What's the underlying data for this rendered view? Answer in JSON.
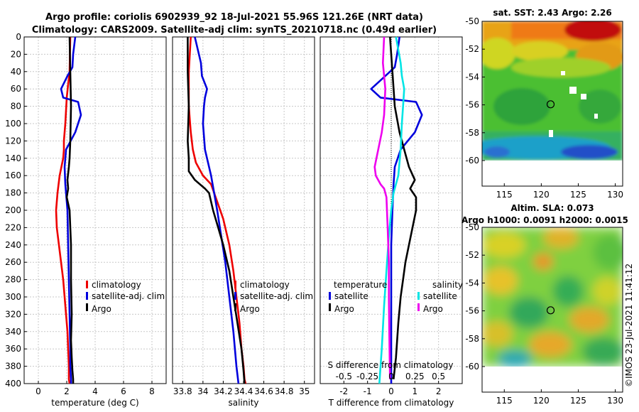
{
  "header": {
    "title_line1": "Argo profile: coriolis 6902939_92 18-Jul-2021 55.96S 121.26E (NRT data)",
    "title_line2": "Climatology: CARS2009. Satellite-adj clim: synTS_20210718.nc (0.49d earlier)"
  },
  "copyright": "©IMOS 23-Jul-2021 11:41:12",
  "colors": {
    "climatology": "#ee0000",
    "satellite": "#0000dd",
    "argo": "#000000",
    "salinity_satellite": "#00e5e5",
    "salinity_argo": "#ee00ee"
  },
  "chart_data": [
    {
      "id": "temperature",
      "type": "line",
      "xlabel": "temperature (deg C)",
      "xlim": [
        -1,
        9
      ],
      "xticks": [
        0,
        2,
        4,
        6,
        8
      ],
      "ylim": [
        400,
        0
      ],
      "yticks": [
        0,
        20,
        40,
        60,
        80,
        100,
        120,
        140,
        160,
        180,
        200,
        220,
        240,
        260,
        280,
        300,
        320,
        340,
        360,
        380,
        400
      ],
      "grid": true,
      "legend": [
        "climatology",
        "satellite-adj. clim",
        "Argo"
      ],
      "legend_placement": "lower-right",
      "series": [
        {
          "name": "climatology",
          "color": "#ee0000",
          "x": [
            2.25,
            2.2,
            2.0,
            1.9,
            1.8,
            1.8,
            1.75,
            1.5,
            1.35,
            1.25,
            1.3,
            1.45,
            1.6,
            1.75,
            1.85,
            1.95,
            2.05,
            2.1,
            2.15,
            2.15,
            2.2
          ],
          "y": [
            0,
            40,
            70,
            100,
            120,
            130,
            140,
            160,
            180,
            200,
            220,
            240,
            260,
            280,
            300,
            320,
            340,
            360,
            380,
            395,
            400
          ]
        },
        {
          "name": "satellite-adj. clim",
          "color": "#0000dd",
          "x": [
            2.6,
            2.45,
            2.4,
            2.05,
            1.6,
            1.75,
            2.8,
            3.0,
            2.6,
            1.95,
            1.85,
            1.9,
            2.05,
            2.1,
            2.15,
            2.2,
            2.25,
            2.25,
            2.3,
            2.3
          ],
          "y": [
            0,
            20,
            35,
            45,
            60,
            70,
            75,
            90,
            110,
            130,
            150,
            170,
            200,
            240,
            280,
            320,
            360,
            380,
            395,
            400
          ]
        },
        {
          "name": "Argo",
          "color": "#000000",
          "x": [
            2.2,
            2.25,
            2.3,
            2.25,
            2.2,
            2.15,
            2.05,
            2.1,
            2.0,
            2.2,
            2.3,
            2.3,
            2.35,
            2.3,
            2.35,
            2.4,
            2.45,
            2.45
          ],
          "y": [
            0,
            40,
            80,
            120,
            140,
            150,
            165,
            175,
            185,
            200,
            240,
            280,
            320,
            350,
            370,
            385,
            395,
            400
          ]
        }
      ]
    },
    {
      "id": "salinity",
      "type": "line",
      "xlabel": "salinity",
      "xlim": [
        33.7,
        35.1
      ],
      "xticks": [
        33.8,
        34,
        34.2,
        34.4,
        34.6,
        34.8,
        35
      ],
      "xticklabels": [
        "33.8",
        "34",
        "34.2",
        "34.4",
        "34.6",
        "34.8",
        "35"
      ],
      "ylim": [
        400,
        0
      ],
      "grid": true,
      "legend": [
        "climatology",
        "satellite-adj. clim",
        "Argo"
      ],
      "legend_placement": "lower-right",
      "series": [
        {
          "name": "climatology",
          "color": "#ee0000",
          "x": [
            33.88,
            33.86,
            33.86,
            33.88,
            33.9,
            33.93,
            34.0,
            34.08,
            34.14,
            34.2,
            34.26,
            34.3,
            34.33,
            34.36,
            34.38,
            34.4,
            34.41,
            34.42
          ],
          "y": [
            0,
            40,
            80,
            110,
            130,
            145,
            160,
            170,
            190,
            210,
            240,
            270,
            300,
            330,
            360,
            380,
            395,
            400
          ]
        },
        {
          "name": "satellite-adj. clim",
          "color": "#0000dd",
          "x": [
            33.92,
            33.98,
            33.99,
            34.04,
            34.02,
            34.01,
            34.0,
            34.02,
            34.08,
            34.14,
            34.18,
            34.22,
            34.26,
            34.3,
            34.33,
            34.35
          ],
          "y": [
            0,
            30,
            45,
            60,
            70,
            80,
            100,
            130,
            160,
            200,
            230,
            260,
            300,
            340,
            380,
            400
          ]
        },
        {
          "name": "Argo",
          "color": "#000000",
          "x": [
            33.85,
            33.85,
            33.86,
            33.85,
            33.86,
            33.86,
            33.92,
            34.02,
            34.06,
            34.1,
            34.15,
            34.2,
            34.26,
            34.3,
            34.34,
            34.38,
            34.4,
            34.41
          ],
          "y": [
            0,
            40,
            80,
            120,
            140,
            155,
            165,
            175,
            180,
            200,
            220,
            240,
            270,
            300,
            330,
            360,
            385,
            400
          ]
        }
      ]
    },
    {
      "id": "differences",
      "type": "line",
      "xlabel": "T difference from climatology",
      "xlim": [
        -3,
        3
      ],
      "xticks": [
        -2,
        -1,
        0,
        1,
        2
      ],
      "top_label": "S difference from climatology",
      "top_ticks": [
        "-0.5",
        "-0.25",
        "0",
        "0.25",
        "0.5"
      ],
      "top_tick_positions": [
        -2,
        -1,
        0,
        1,
        2
      ],
      "ylim": [
        400,
        0
      ],
      "grid": true,
      "legend_temperature_title": "temperature",
      "legend_salinity_title": "salinity",
      "legend_temperature": [
        "satellite",
        "Argo"
      ],
      "legend_salinity": [
        "satellite",
        "Argo"
      ],
      "series": [
        {
          "name": "temperature satellite",
          "color": "#0000dd",
          "x": [
            0.35,
            0.25,
            0.15,
            -0.25,
            -0.85,
            -0.45,
            1.05,
            1.3,
            1.0,
            0.4,
            0.15,
            0.1,
            0.05,
            0.0,
            0.0,
            0.0
          ],
          "y": [
            0,
            20,
            35,
            45,
            60,
            70,
            75,
            90,
            110,
            130,
            150,
            170,
            200,
            240,
            300,
            400
          ]
        },
        {
          "name": "temperature Argo",
          "color": "#000000",
          "x": [
            -0.05,
            0.05,
            0.15,
            0.35,
            0.55,
            0.75,
            1.0,
            0.8,
            1.05,
            1.05,
            0.9,
            0.75,
            0.6,
            0.5,
            0.4,
            0.3,
            0.2,
            0.1
          ],
          "y": [
            0,
            40,
            80,
            110,
            130,
            150,
            165,
            175,
            185,
            200,
            220,
            240,
            260,
            280,
            300,
            330,
            370,
            395
          ]
        },
        {
          "name": "salinity satellite",
          "color": "#00e5e5",
          "x": [
            0.2,
            0.4,
            0.45,
            0.55,
            0.5,
            0.45,
            0.4,
            0.3,
            0.1,
            0.0,
            -0.1,
            -0.2,
            -0.3,
            -0.4,
            -0.5
          ],
          "y": [
            0,
            30,
            45,
            60,
            80,
            100,
            130,
            160,
            180,
            200,
            230,
            270,
            310,
            360,
            400
          ]
        },
        {
          "name": "salinity Argo",
          "color": "#ee00ee",
          "x": [
            -0.3,
            -0.35,
            -0.25,
            -0.3,
            -0.4,
            -0.55,
            -0.7,
            -0.65,
            -0.45,
            -0.3,
            -0.2,
            -0.15,
            -0.1,
            -0.1,
            -0.08,
            -0.05
          ],
          "y": [
            0,
            30,
            60,
            90,
            110,
            130,
            150,
            160,
            170,
            175,
            185,
            220,
            260,
            300,
            340,
            395
          ]
        }
      ]
    },
    {
      "id": "sst_map",
      "type": "heatmap",
      "title": "sat. SST: 2.43 Argo: 2.26",
      "xlim": [
        112,
        131
      ],
      "ylim": [
        -62,
        -50
      ],
      "xticks": [
        115,
        120,
        125,
        130
      ],
      "yticks": [
        -50,
        -52,
        -54,
        -56,
        -58,
        -60
      ],
      "data_extent_lat": [
        -60,
        -50
      ],
      "argo_marker": {
        "lon": 121.26,
        "lat": -55.96
      }
    },
    {
      "id": "sla_map",
      "type": "heatmap",
      "title": "Altim. SLA: 0.073",
      "subtitle": "Argo h1000: 0.0091 h2000: 0.0015",
      "xlim": [
        112,
        131
      ],
      "ylim": [
        -62,
        -50
      ],
      "xticks": [
        115,
        120,
        125,
        130
      ],
      "yticks": [
        -50,
        -52,
        -54,
        -56,
        -58,
        -60
      ],
      "data_extent_lat": [
        -60,
        -50
      ],
      "argo_marker": {
        "lon": 121.26,
        "lat": -55.96
      }
    }
  ]
}
